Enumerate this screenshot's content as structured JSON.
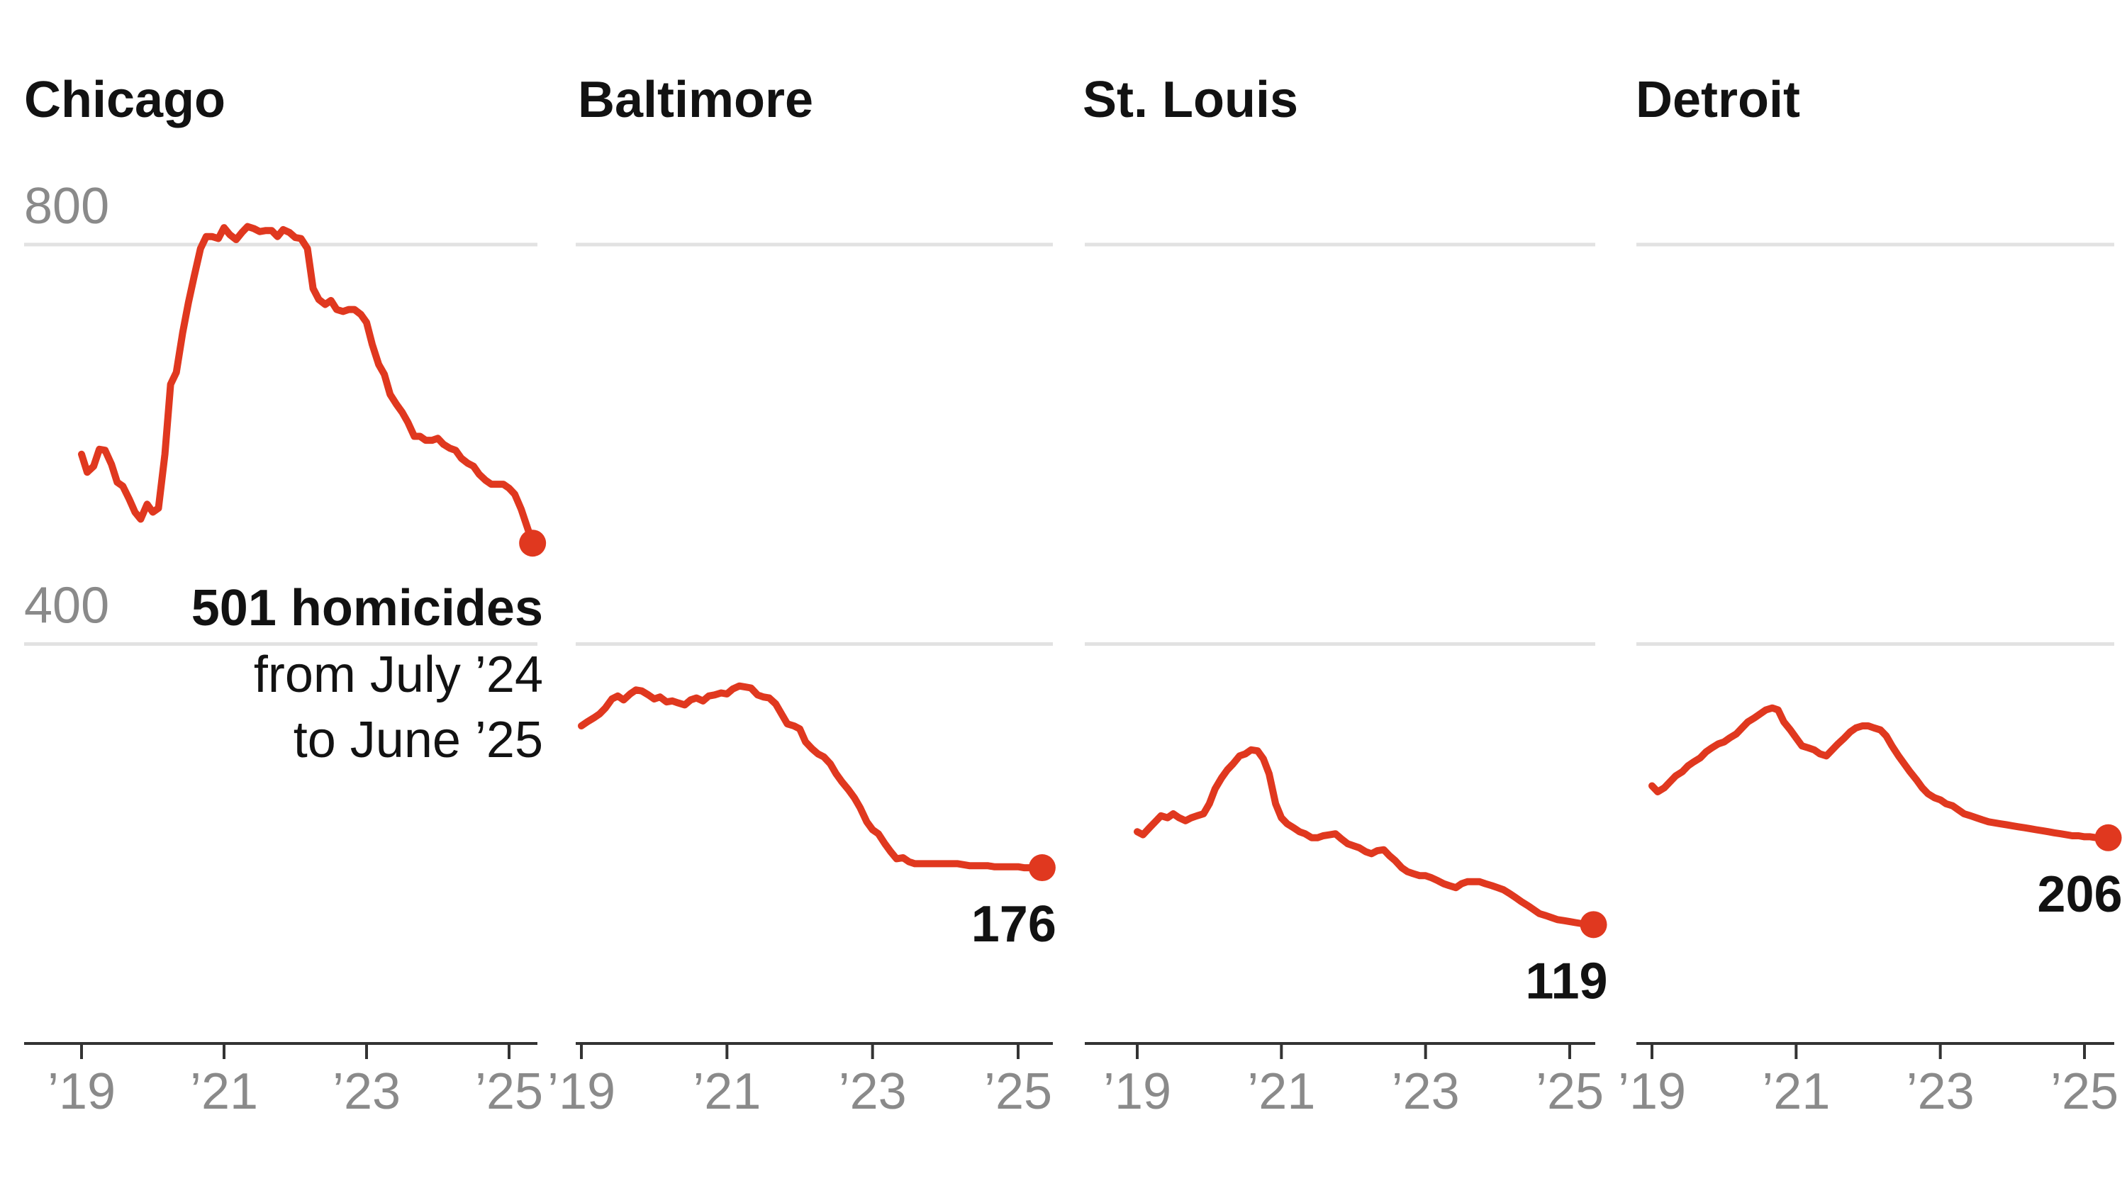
{
  "chart_data": [
    {
      "type": "line",
      "title": "Chicago",
      "ylim": [
        0,
        800
      ],
      "yticks": [
        {
          "value": 800,
          "label": "800"
        },
        {
          "value": 400,
          "label": "400"
        }
      ],
      "xticks": [
        {
          "value": 2019,
          "label": "’19"
        },
        {
          "value": 2021,
          "label": "’21"
        },
        {
          "value": 2023,
          "label": "’23"
        },
        {
          "value": 2025,
          "label": "’25"
        }
      ],
      "grid": true,
      "color": "#e0381f",
      "series": [
        {
          "x": [
            2019.0,
            2019.08,
            2019.17,
            2019.25,
            2019.33,
            2019.42,
            2019.5,
            2019.58,
            2019.67,
            2019.75,
            2019.83,
            2019.92,
            2020.0,
            2020.08,
            2020.17,
            2020.25,
            2020.33,
            2020.42,
            2020.5,
            2020.58,
            2020.67,
            2020.75,
            2020.83,
            2020.92,
            2021.0,
            2021.08,
            2021.17,
            2021.25,
            2021.33,
            2021.42,
            2021.5,
            2021.58,
            2021.67,
            2021.75,
            2021.83,
            2021.92,
            2022.0,
            2022.08,
            2022.17,
            2022.25,
            2022.33,
            2022.42,
            2022.5,
            2022.58,
            2022.67,
            2022.75,
            2022.83,
            2022.92,
            2023.0,
            2023.08,
            2023.17,
            2023.25,
            2023.33,
            2023.42,
            2023.5,
            2023.58,
            2023.67,
            2023.75,
            2023.83,
            2023.92,
            2024.0,
            2024.08,
            2024.17,
            2024.25,
            2024.33,
            2024.42,
            2024.5,
            2024.58,
            2024.67,
            2024.75,
            2024.83,
            2024.92,
            2025.0,
            2025.08,
            2025.17,
            2025.33
          ],
          "y": [
            590,
            572,
            578,
            595,
            594,
            580,
            562,
            558,
            545,
            532,
            525,
            540,
            532,
            536,
            590,
            660,
            672,
            712,
            742,
            768,
            796,
            808,
            808,
            806,
            817,
            810,
            805,
            812,
            818,
            816,
            813,
            814,
            814,
            808,
            815,
            812,
            807,
            806,
            796,
            756,
            745,
            740,
            744,
            735,
            733,
            735,
            735,
            730,
            722,
            700,
            680,
            670,
            650,
            640,
            632,
            622,
            608,
            608,
            604,
            604,
            606,
            600,
            596,
            594,
            586,
            581,
            578,
            570,
            564,
            560,
            560,
            560,
            556,
            550,
            535,
            501
          ]
        }
      ],
      "annotation": {
        "value_label": "501 homicides",
        "lines": [
          "from July ’24",
          "to June ’25"
        ]
      }
    },
    {
      "type": "line",
      "title": "Baltimore",
      "ylim": [
        0,
        800
      ],
      "xticks": [
        {
          "value": 2019,
          "label": "’19"
        },
        {
          "value": 2021,
          "label": "’21"
        },
        {
          "value": 2023,
          "label": "’23"
        },
        {
          "value": 2025,
          "label": "’25"
        }
      ],
      "grid": true,
      "color": "#e0381f",
      "series": [
        {
          "x": [
            2019.0,
            2019.08,
            2019.17,
            2019.25,
            2019.33,
            2019.42,
            2019.5,
            2019.58,
            2019.67,
            2019.75,
            2019.83,
            2019.92,
            2020.0,
            2020.08,
            2020.17,
            2020.25,
            2020.33,
            2020.42,
            2020.5,
            2020.58,
            2020.67,
            2020.75,
            2020.83,
            2020.92,
            2021.0,
            2021.08,
            2021.17,
            2021.25,
            2021.33,
            2021.42,
            2021.5,
            2021.58,
            2021.67,
            2021.75,
            2021.83,
            2021.92,
            2022.0,
            2022.08,
            2022.17,
            2022.25,
            2022.33,
            2022.42,
            2022.5,
            2022.58,
            2022.67,
            2022.75,
            2022.83,
            2022.92,
            2023.0,
            2023.08,
            2023.17,
            2023.25,
            2023.33,
            2023.42,
            2023.5,
            2023.58,
            2023.67,
            2023.75,
            2023.83,
            2023.92,
            2024.0,
            2024.08,
            2024.17,
            2024.25,
            2024.33,
            2024.42,
            2024.5,
            2024.58,
            2024.67,
            2024.75,
            2024.83,
            2024.92,
            2025.0,
            2025.08,
            2025.17,
            2025.33
          ],
          "y": [
            318,
            322,
            326,
            330,
            336,
            345,
            348,
            344,
            350,
            354,
            353,
            349,
            345,
            347,
            342,
            343,
            341,
            339,
            344,
            346,
            343,
            348,
            349,
            351,
            350,
            355,
            358,
            357,
            356,
            349,
            347,
            346,
            340,
            330,
            320,
            318,
            315,
            302,
            295,
            290,
            287,
            280,
            270,
            262,
            254,
            246,
            236,
            222,
            214,
            210,
            200,
            192,
            185,
            186,
            182,
            180,
            180,
            180,
            180,
            180,
            180,
            180,
            180,
            179,
            178,
            178,
            178,
            178,
            177,
            177,
            177,
            177,
            177,
            176,
            176,
            176
          ]
        }
      ],
      "annotation": {
        "value_label": "176"
      }
    },
    {
      "type": "line",
      "title": "St. Louis",
      "ylim": [
        0,
        800
      ],
      "xticks": [
        {
          "value": 2019,
          "label": "’19"
        },
        {
          "value": 2021,
          "label": "’21"
        },
        {
          "value": 2023,
          "label": "’23"
        },
        {
          "value": 2025,
          "label": "’25"
        }
      ],
      "grid": true,
      "color": "#e0381f",
      "series": [
        {
          "x": [
            2019.0,
            2019.08,
            2019.17,
            2019.25,
            2019.33,
            2019.42,
            2019.5,
            2019.58,
            2019.67,
            2019.75,
            2019.83,
            2019.92,
            2020.0,
            2020.08,
            2020.17,
            2020.25,
            2020.33,
            2020.42,
            2020.5,
            2020.58,
            2020.67,
            2020.75,
            2020.83,
            2020.92,
            2021.0,
            2021.08,
            2021.17,
            2021.25,
            2021.33,
            2021.42,
            2021.5,
            2021.58,
            2021.67,
            2021.75,
            2021.83,
            2021.92,
            2022.0,
            2022.08,
            2022.17,
            2022.25,
            2022.33,
            2022.42,
            2022.5,
            2022.58,
            2022.67,
            2022.75,
            2022.83,
            2022.92,
            2023.0,
            2023.08,
            2023.17,
            2023.25,
            2023.33,
            2023.42,
            2023.5,
            2023.58,
            2023.67,
            2023.75,
            2023.83,
            2023.92,
            2024.0,
            2024.08,
            2024.17,
            2024.25,
            2024.33,
            2024.42,
            2024.5,
            2024.58,
            2024.67,
            2024.75,
            2024.83,
            2024.92,
            2025.0,
            2025.08,
            2025.17,
            2025.33
          ],
          "y": [
            212,
            209,
            216,
            222,
            228,
            226,
            230,
            226,
            223,
            226,
            228,
            230,
            240,
            255,
            266,
            274,
            280,
            288,
            290,
            294,
            293,
            285,
            270,
            240,
            226,
            220,
            216,
            212,
            210,
            206,
            206,
            208,
            209,
            210,
            205,
            200,
            198,
            196,
            192,
            190,
            193,
            194,
            188,
            183,
            176,
            172,
            170,
            168,
            168,
            166,
            163,
            160,
            158,
            156,
            160,
            162,
            162,
            162,
            160,
            158,
            156,
            154,
            150,
            146,
            142,
            138,
            134,
            130,
            128,
            126,
            124,
            123,
            122,
            121,
            120,
            119
          ]
        }
      ],
      "annotation": {
        "value_label": "119"
      }
    },
    {
      "type": "line",
      "title": "Detroit",
      "ylim": [
        0,
        800
      ],
      "xticks": [
        {
          "value": 2019,
          "label": "’19"
        },
        {
          "value": 2021,
          "label": "’21"
        },
        {
          "value": 2023,
          "label": "’23"
        },
        {
          "value": 2025,
          "label": "’25"
        }
      ],
      "grid": true,
      "color": "#e0381f",
      "series": [
        {
          "x": [
            2019.0,
            2019.08,
            2019.17,
            2019.25,
            2019.33,
            2019.42,
            2019.5,
            2019.58,
            2019.67,
            2019.75,
            2019.83,
            2019.92,
            2020.0,
            2020.08,
            2020.17,
            2020.25,
            2020.33,
            2020.42,
            2020.5,
            2020.58,
            2020.67,
            2020.75,
            2020.83,
            2020.92,
            2021.0,
            2021.08,
            2021.17,
            2021.25,
            2021.33,
            2021.42,
            2021.5,
            2021.58,
            2021.67,
            2021.75,
            2021.83,
            2021.92,
            2022.0,
            2022.08,
            2022.17,
            2022.25,
            2022.33,
            2022.42,
            2022.5,
            2022.58,
            2022.67,
            2022.75,
            2022.83,
            2022.92,
            2023.0,
            2023.08,
            2023.17,
            2023.25,
            2023.33,
            2023.42,
            2023.5,
            2023.58,
            2023.67,
            2023.75,
            2023.83,
            2023.92,
            2024.0,
            2024.08,
            2024.17,
            2024.25,
            2024.33,
            2024.42,
            2024.5,
            2024.58,
            2024.67,
            2024.75,
            2024.83,
            2024.92,
            2025.0,
            2025.08,
            2025.17,
            2025.33
          ],
          "y": [
            258,
            252,
            256,
            262,
            268,
            272,
            278,
            282,
            286,
            292,
            296,
            300,
            302,
            306,
            310,
            316,
            322,
            326,
            330,
            334,
            336,
            334,
            322,
            314,
            306,
            298,
            296,
            294,
            290,
            288,
            294,
            300,
            306,
            312,
            316,
            318,
            318,
            316,
            314,
            308,
            298,
            288,
            280,
            272,
            264,
            256,
            250,
            246,
            244,
            240,
            238,
            234,
            230,
            228,
            226,
            224,
            222,
            221,
            220,
            219,
            218,
            217,
            216,
            215,
            214,
            213,
            212,
            211,
            210,
            209,
            208,
            208,
            207,
            207,
            206,
            206
          ]
        }
      ],
      "annotation": {
        "value_label": "206"
      }
    }
  ]
}
